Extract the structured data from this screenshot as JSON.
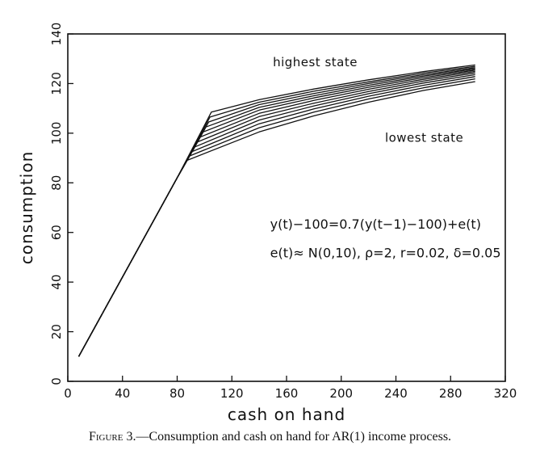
{
  "chart_data": {
    "type": "line",
    "xlabel": "cash on hand",
    "ylabel": "consumption",
    "xlim": [
      0,
      320
    ],
    "ylim": [
      0,
      140
    ],
    "xticks": [
      0,
      40,
      80,
      120,
      160,
      200,
      240,
      280,
      320
    ],
    "yticks": [
      0,
      20,
      40,
      60,
      80,
      100,
      120,
      140
    ],
    "grid": false,
    "legend": "none",
    "series": [
      {
        "x": [
          8,
          80,
          105,
          140,
          180,
          220,
          260,
          298
        ],
        "y": [
          10,
          82,
          108.5,
          113.5,
          117.8,
          121.5,
          124.8,
          127.5
        ]
      },
      {
        "x": [
          8,
          80,
          104,
          140,
          180,
          220,
          260,
          298
        ],
        "y": [
          10,
          82,
          106.5,
          112.5,
          116.9,
          120.7,
          124.2,
          126.9
        ]
      },
      {
        "x": [
          8,
          80,
          103,
          140,
          180,
          220,
          260,
          298
        ],
        "y": [
          10,
          82,
          104.5,
          111.5,
          116.0,
          120.0,
          123.6,
          126.4
        ]
      },
      {
        "x": [
          8,
          80,
          101,
          140,
          180,
          220,
          260,
          298
        ],
        "y": [
          10,
          82,
          102.5,
          110.4,
          115.1,
          119.3,
          123.0,
          125.9
        ]
      },
      {
        "x": [
          8,
          80,
          99,
          140,
          180,
          220,
          260,
          298
        ],
        "y": [
          10,
          82,
          100.5,
          109.3,
          114.2,
          118.5,
          122.4,
          125.4
        ]
      },
      {
        "x": [
          8,
          80,
          97,
          140,
          180,
          220,
          260,
          298
        ],
        "y": [
          10,
          82,
          98.5,
          108.0,
          113.2,
          117.7,
          121.7,
          124.9
        ]
      },
      {
        "x": [
          8,
          80,
          95,
          140,
          180,
          220,
          260,
          298
        ],
        "y": [
          10,
          82,
          96.5,
          106.7,
          112.1,
          116.8,
          121.0,
          124.3
        ]
      },
      {
        "x": [
          8,
          80,
          93,
          140,
          180,
          220,
          260,
          298
        ],
        "y": [
          10,
          82,
          94.5,
          105.3,
          111.0,
          115.9,
          120.2,
          123.6
        ]
      },
      {
        "x": [
          8,
          80,
          91,
          140,
          180,
          220,
          260,
          298
        ],
        "y": [
          10,
          82,
          92.6,
          103.8,
          109.8,
          114.9,
          119.3,
          122.8
        ]
      },
      {
        "x": [
          8,
          80,
          89,
          140,
          180,
          220,
          260,
          298
        ],
        "y": [
          10,
          82,
          90.8,
          102.2,
          108.5,
          113.8,
          118.3,
          121.9
        ]
      },
      {
        "x": [
          8,
          80,
          87,
          140,
          180,
          220,
          260,
          298
        ],
        "y": [
          10,
          82,
          89.0,
          100.5,
          107.0,
          112.5,
          117.2,
          120.8
        ]
      }
    ],
    "annotations": [
      {
        "text": "highest state",
        "x": 150,
        "y": 127
      },
      {
        "text": "lowest state",
        "x": 232,
        "y": 96.5
      },
      {
        "text": "y(t)−100=0.7(y(t−1)−100)+e(t)",
        "x": 148,
        "y": 61.5
      },
      {
        "text": "e(t)≈ N(0,10), ρ=2, r=0.02, δ=0.05",
        "x": 148,
        "y": 50
      }
    ]
  },
  "caption": {
    "prefix": "Figure 3.",
    "text": "—Consumption and cash on hand for AR(1) income process."
  }
}
